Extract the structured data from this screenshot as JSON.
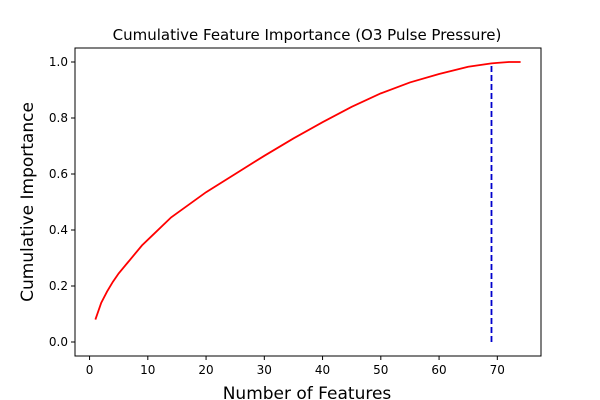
{
  "chart_data": {
    "type": "line",
    "title": "Cumulative Feature Importance (O3 Pulse Pressure)",
    "xlabel": "Number of Features",
    "ylabel": "Cumulative Importance",
    "xlim": [
      -2.5,
      77.5
    ],
    "ylim": [
      -0.05,
      1.05
    ],
    "xticks": [
      0,
      10,
      20,
      30,
      40,
      50,
      60,
      70
    ],
    "yticks": [
      0.0,
      0.2,
      0.4,
      0.6,
      0.8,
      1.0
    ],
    "ytick_labels": [
      "0.0",
      "0.2",
      "0.4",
      "0.6",
      "0.8",
      "1.0"
    ],
    "grid": false,
    "series": [
      {
        "color": "#ff0000",
        "style": "solid",
        "x": [
          1,
          2,
          3,
          4,
          5,
          7,
          9,
          11,
          14,
          17,
          20,
          25,
          30,
          35,
          40,
          45,
          50,
          55,
          60,
          65,
          69,
          70,
          72,
          74
        ],
        "y": [
          0.08,
          0.14,
          0.18,
          0.215,
          0.245,
          0.295,
          0.345,
          0.385,
          0.445,
          0.49,
          0.535,
          0.6,
          0.665,
          0.727,
          0.785,
          0.84,
          0.888,
          0.927,
          0.957,
          0.983,
          0.995,
          0.997,
          1.0,
          1.0
        ]
      },
      {
        "color": "#0000cc",
        "style": "dashed",
        "x": [
          69,
          69
        ],
        "y": [
          0.0,
          0.995
        ]
      }
    ]
  }
}
